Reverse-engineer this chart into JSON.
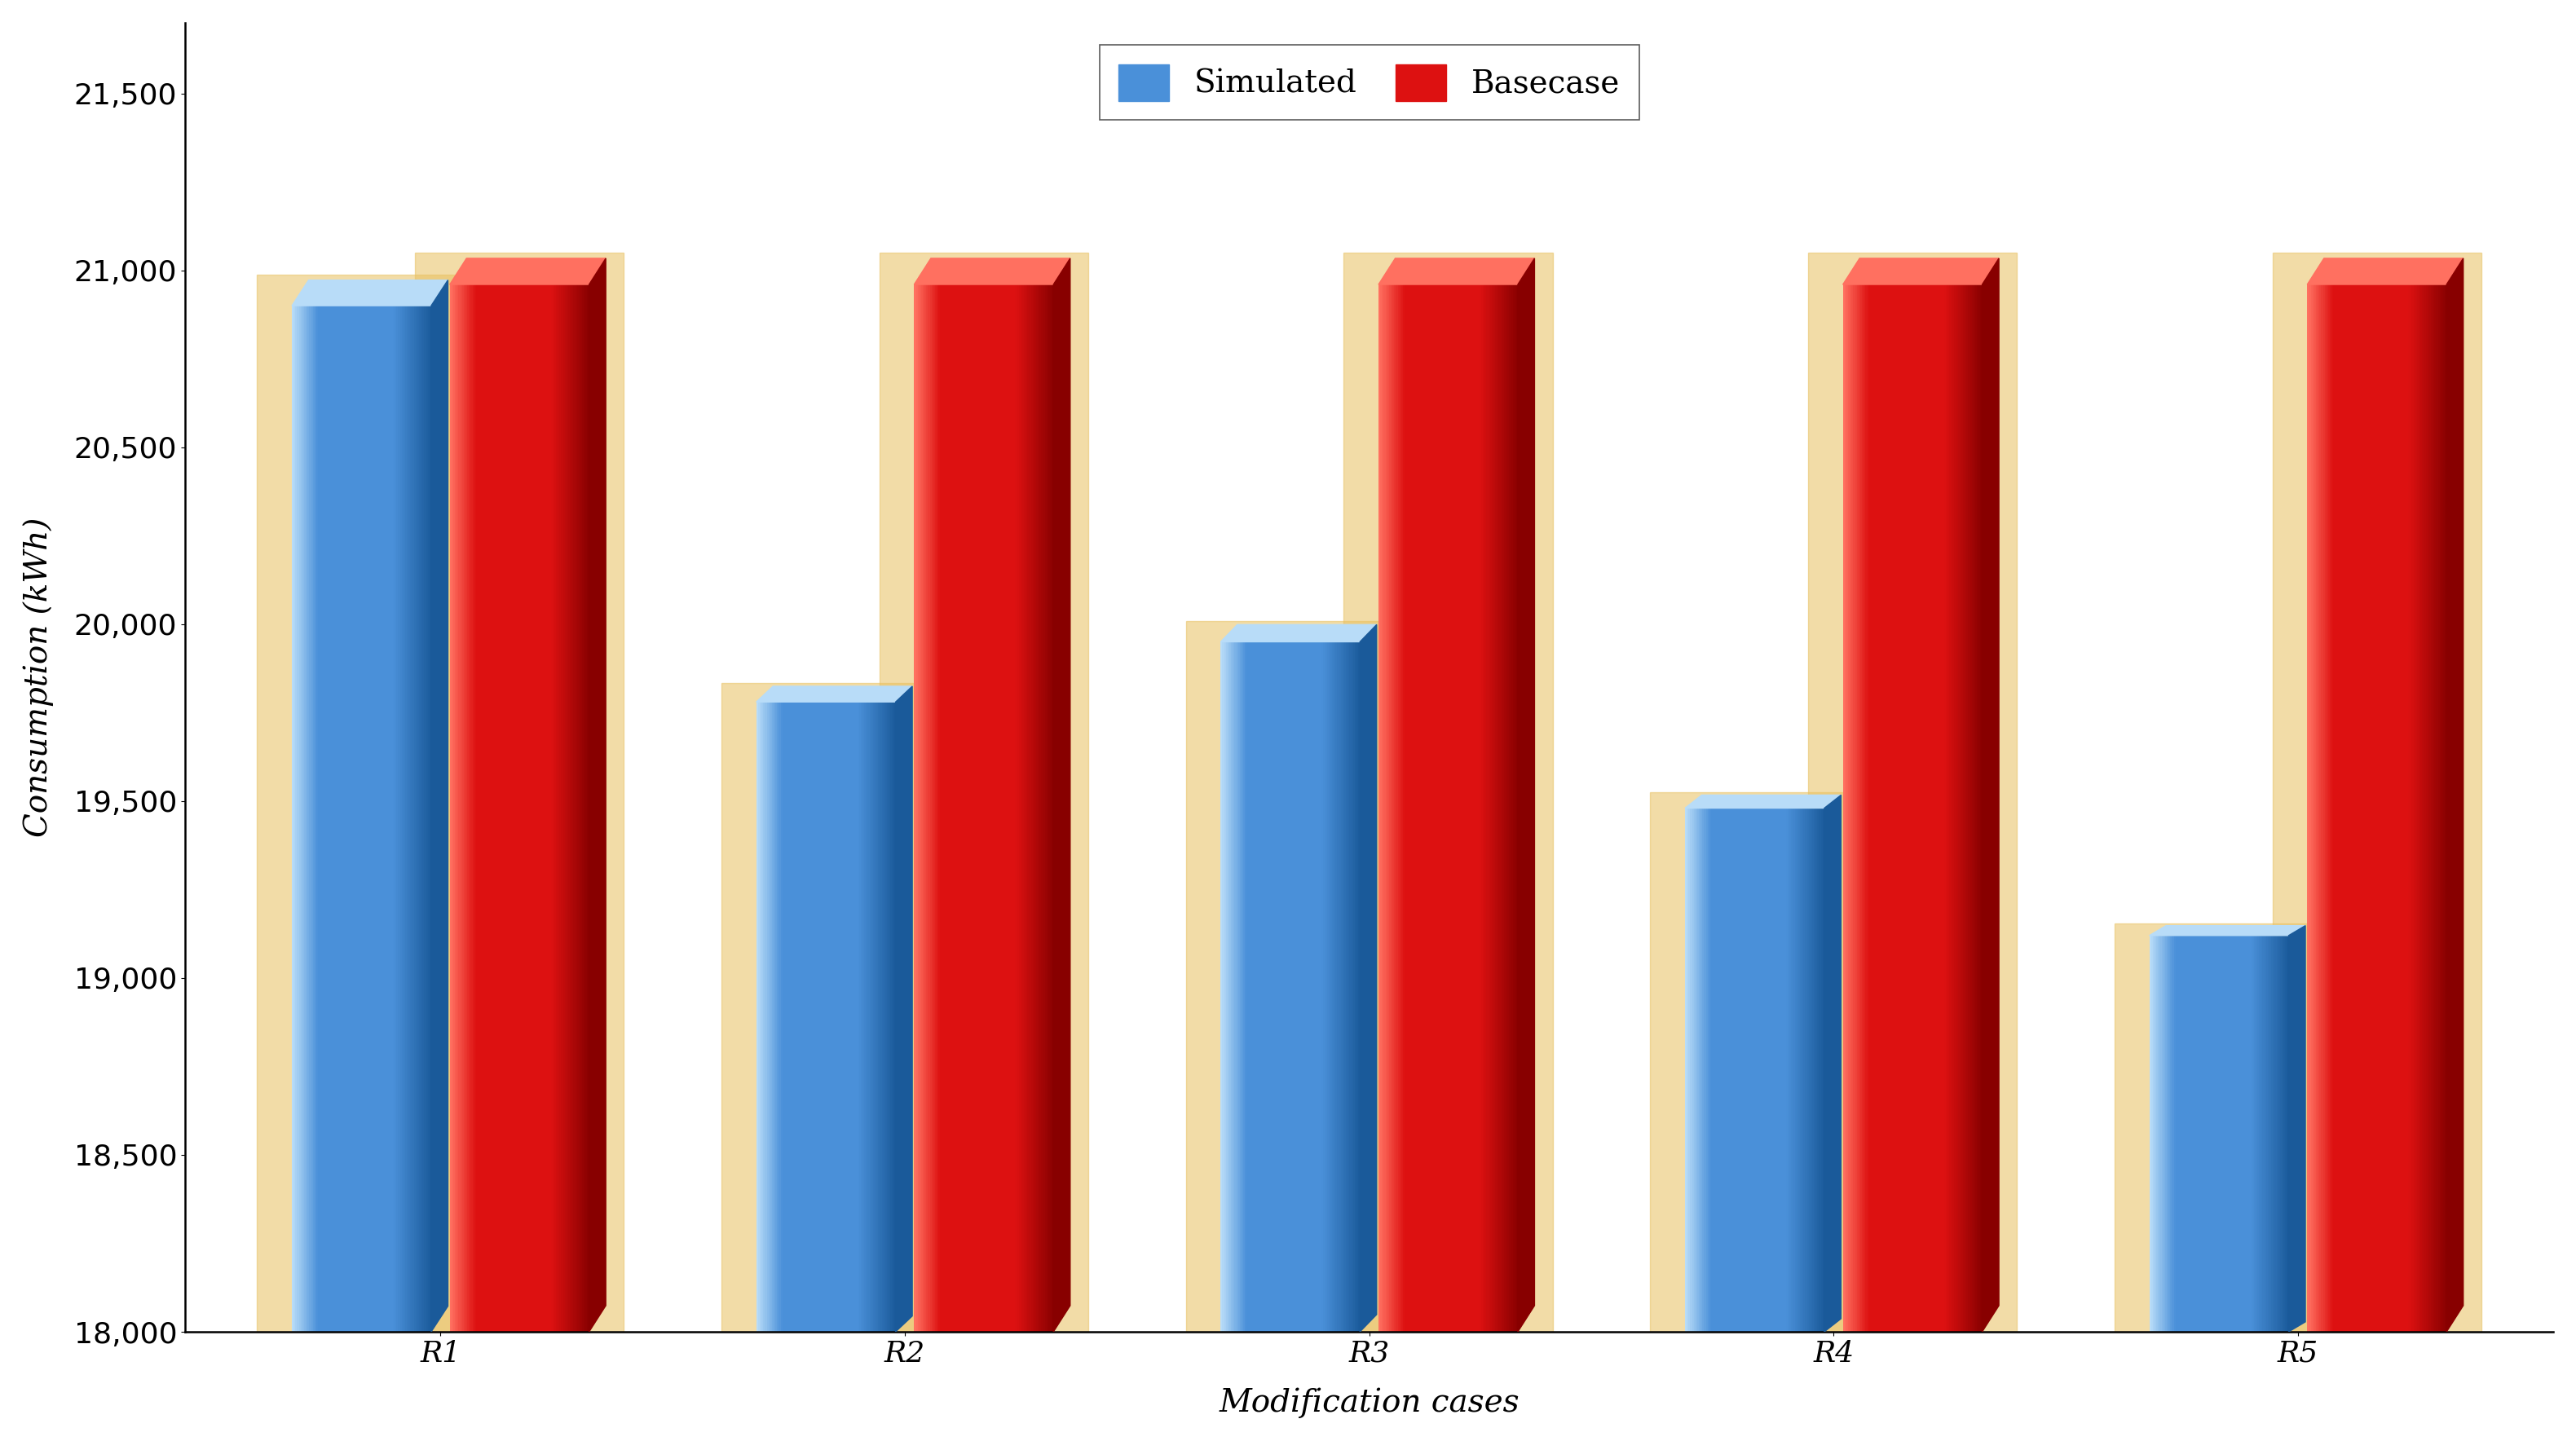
{
  "categories": [
    "R1",
    "R2",
    "R3",
    "R4",
    "R5"
  ],
  "simulated": [
    20900,
    19780,
    19950,
    19480,
    19120
  ],
  "basecase": [
    20960,
    20960,
    20960,
    20960,
    20960
  ],
  "ylim": [
    18000,
    21700
  ],
  "yticks": [
    18000,
    18500,
    19000,
    19500,
    20000,
    20500,
    21000,
    21500
  ],
  "ylabel": "Consumption (kWh)",
  "xlabel": "Modification cases",
  "legend_labels": [
    "Simulated",
    "Basecase"
  ],
  "sim_main": "#4a90d9",
  "sim_light": "#b8dcf8",
  "sim_dark": "#1a5a9a",
  "base_main": "#dd1111",
  "base_light": "#ff7060",
  "base_dark": "#880000",
  "glow_color": "#e8c060",
  "background_color": "#ffffff",
  "label_fontsize": 28,
  "tick_fontsize": 26,
  "legend_fontsize": 28,
  "bar_width": 0.3,
  "bar_gap": 0.04
}
